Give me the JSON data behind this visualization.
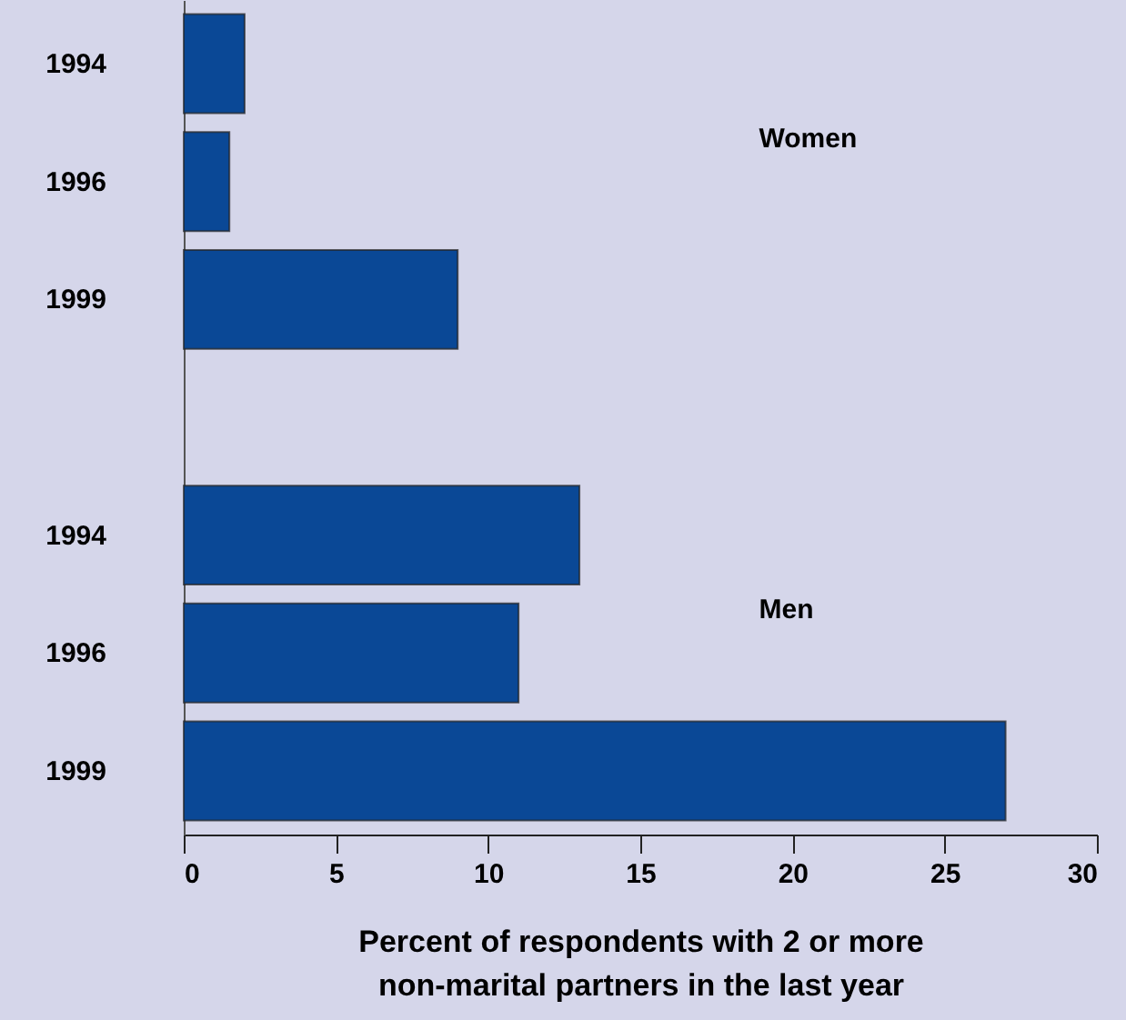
{
  "chart_data": {
    "type": "bar",
    "orientation": "horizontal",
    "categories": [
      "1994",
      "1996",
      "1999",
      null,
      "1994",
      "1996",
      "1999"
    ],
    "values": [
      2,
      1.5,
      9,
      null,
      13,
      11,
      27
    ],
    "color": "#0a4896",
    "xlim": [
      0,
      30
    ],
    "xticks": [
      0,
      5,
      10,
      15,
      20,
      25,
      30
    ],
    "xlabel": "Percent of respondents with 2 or more\nnon-marital partners in the last year",
    "annotations": [
      "Women",
      "Men"
    ],
    "grid": false
  }
}
